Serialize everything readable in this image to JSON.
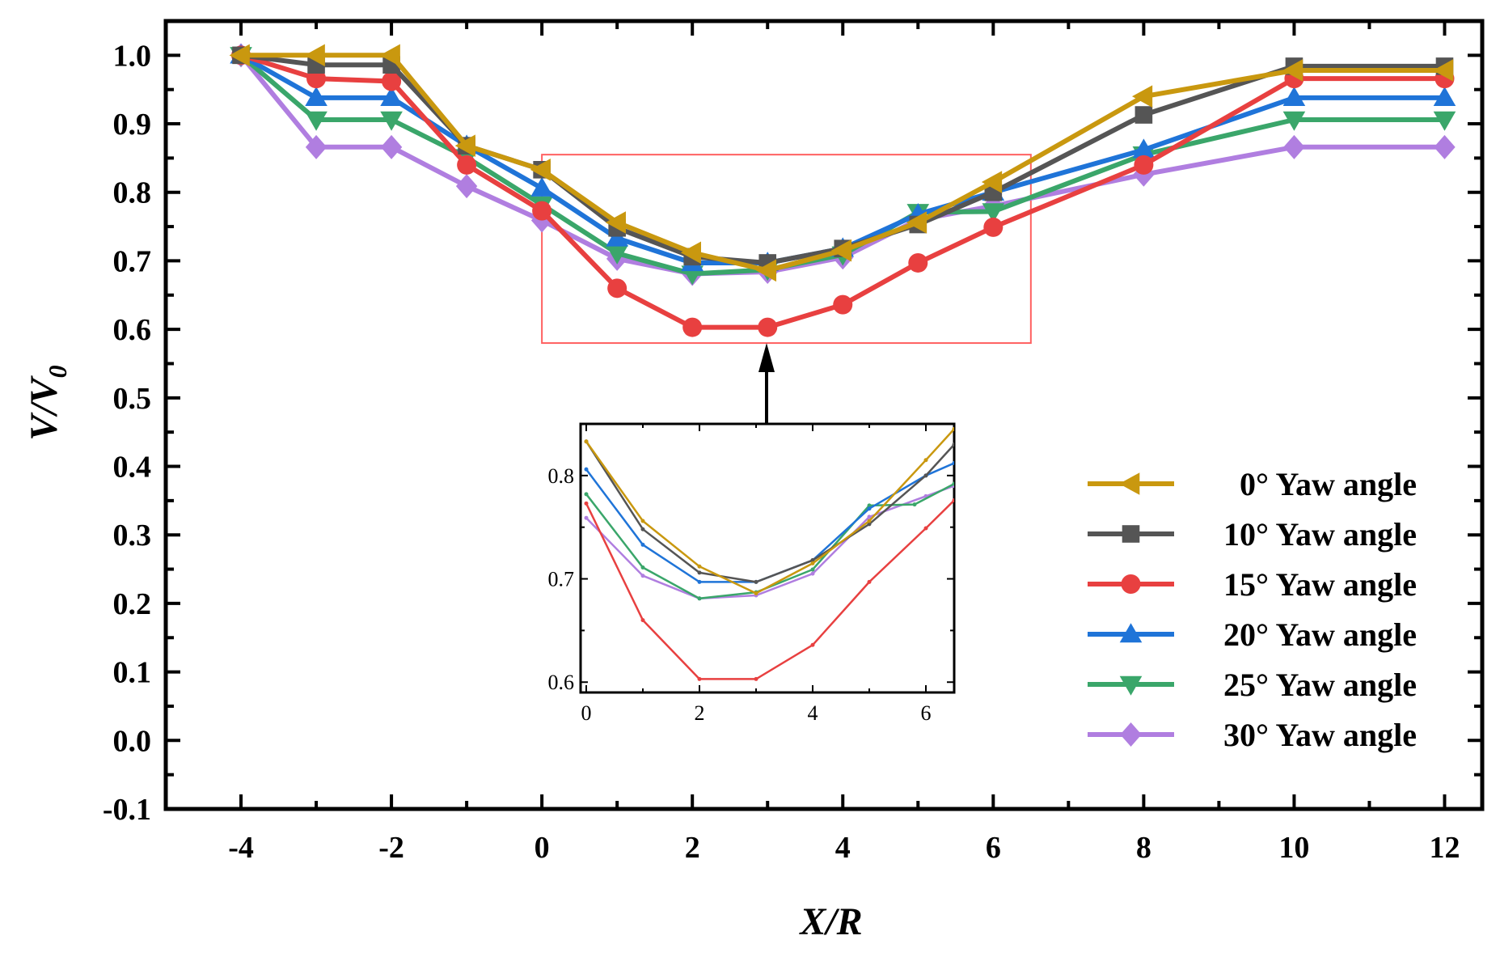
{
  "chart_data": {
    "type": "line",
    "title": "",
    "xlabel": "X/R",
    "ylabel_main": "V/V",
    "ylabel_sub": "0",
    "xlim": [
      -5,
      12.5
    ],
    "ylim": [
      -0.1,
      1.05
    ],
    "xticks": [
      -4,
      -2,
      0,
      2,
      4,
      6,
      8,
      10,
      12
    ],
    "xtick_labels": [
      "-4",
      "-2",
      "0",
      "2",
      "4",
      "6",
      "8",
      "10",
      "12"
    ],
    "yticks": [
      -0.1,
      0.0,
      0.1,
      0.2,
      0.3,
      0.4,
      0.5,
      0.6,
      0.7,
      0.8,
      0.9,
      1.0
    ],
    "ytick_labels": [
      "-0.1",
      "0.0",
      "0.1",
      "0.2",
      "0.3",
      "0.4",
      "0.5",
      "0.6",
      "0.7",
      "0.8",
      "0.9",
      "1.0"
    ],
    "legend_position": "right",
    "series": [
      {
        "name": "0° Yaw angle",
        "color": "#c9980f",
        "marker": "triangle-left",
        "x": [
          -4,
          -3,
          -2,
          -1,
          0,
          1,
          2,
          3,
          4,
          5,
          6,
          8,
          10,
          12
        ],
        "y": [
          1.0,
          1.0,
          1.0,
          0.868,
          0.833,
          0.756,
          0.712,
          0.686,
          0.715,
          0.756,
          0.815,
          0.94,
          0.978,
          0.978
        ]
      },
      {
        "name": "10° Yaw angle",
        "color": "#555555",
        "marker": "square",
        "x": [
          -4,
          -3,
          -2,
          -1,
          0,
          1,
          2,
          3,
          4,
          5,
          6,
          8,
          10,
          12
        ],
        "y": [
          1.0,
          0.986,
          0.986,
          0.868,
          0.833,
          0.748,
          0.706,
          0.697,
          0.718,
          0.753,
          0.8,
          0.913,
          0.984,
          0.984
        ]
      },
      {
        "name": "15° Yaw angle",
        "color": "#e84040",
        "marker": "circle",
        "x": [
          -4,
          -3,
          -2,
          -1,
          0,
          1,
          2,
          3,
          4,
          5,
          6,
          8,
          10,
          12
        ],
        "y": [
          1.0,
          0.966,
          0.962,
          0.84,
          0.773,
          0.66,
          0.603,
          0.603,
          0.636,
          0.697,
          0.749,
          0.84,
          0.966,
          0.966
        ]
      },
      {
        "name": "20° Yaw angle",
        "color": "#1f74d8",
        "marker": "triangle-up",
        "x": [
          -4,
          -3,
          -2,
          -1,
          0,
          1,
          2,
          3,
          4,
          5,
          6,
          8,
          10,
          12
        ],
        "y": [
          1.0,
          0.938,
          0.938,
          0.868,
          0.806,
          0.733,
          0.697,
          0.697,
          0.718,
          0.768,
          0.8,
          0.862,
          0.938,
          0.938
        ]
      },
      {
        "name": "25° Yaw angle",
        "color": "#3aa66a",
        "marker": "triangle-down",
        "x": [
          -4,
          -3,
          -2,
          -1,
          0,
          1,
          2,
          3,
          4,
          5,
          6,
          8,
          10,
          12
        ],
        "y": [
          1.0,
          0.906,
          0.906,
          0.851,
          0.782,
          0.711,
          0.681,
          0.687,
          0.709,
          0.771,
          0.772,
          0.855,
          0.906,
          0.906
        ]
      },
      {
        "name": "30° Yaw angle",
        "color": "#b07ee0",
        "marker": "diamond",
        "x": [
          -4,
          -3,
          -2,
          -1,
          0,
          1,
          2,
          3,
          4,
          5,
          6,
          8,
          10,
          12
        ],
        "y": [
          1.0,
          0.866,
          0.866,
          0.809,
          0.759,
          0.703,
          0.681,
          0.684,
          0.705,
          0.76,
          0.78,
          0.826,
          0.866,
          0.866
        ]
      }
    ],
    "zoom_box": {
      "xlim": [
        0,
        6.5
      ],
      "ylim": [
        0.58,
        0.855
      ],
      "color": "#ff6060"
    },
    "inset": {
      "xlim": [
        -0.1,
        6.5
      ],
      "ylim": [
        0.59,
        0.85
      ],
      "xticks": [
        0,
        2,
        4,
        6
      ],
      "xtick_labels": [
        "0",
        "2",
        "4",
        "6"
      ],
      "yticks": [
        0.6,
        0.7,
        0.8
      ],
      "ytick_labels": [
        "0.6",
        "0.7",
        "0.8"
      ],
      "series": [
        {
          "name": "0° Yaw angle",
          "x": [
            0,
            1,
            2,
            3,
            4,
            5,
            6,
            6.5
          ],
          "y": [
            0.833,
            0.756,
            0.712,
            0.686,
            0.715,
            0.756,
            0.815,
            0.845
          ]
        },
        {
          "name": "10° Yaw angle",
          "x": [
            0,
            1,
            2,
            3,
            4,
            5,
            6,
            6.5
          ],
          "y": [
            0.833,
            0.748,
            0.706,
            0.697,
            0.718,
            0.753,
            0.8,
            0.83
          ]
        },
        {
          "name": "15° Yaw angle",
          "x": [
            0,
            1,
            2,
            3,
            4,
            5,
            6,
            6.5
          ],
          "y": [
            0.773,
            0.66,
            0.603,
            0.603,
            0.636,
            0.697,
            0.749,
            0.776
          ]
        },
        {
          "name": "20° Yaw angle",
          "x": [
            0,
            1,
            2,
            3,
            4,
            5,
            6,
            6.5
          ],
          "y": [
            0.806,
            0.733,
            0.697,
            0.697,
            0.718,
            0.768,
            0.8,
            0.812
          ]
        },
        {
          "name": "25° Yaw angle",
          "x": [
            0,
            1,
            2,
            3,
            4,
            5,
            5.8,
            6.5
          ],
          "y": [
            0.782,
            0.711,
            0.681,
            0.687,
            0.709,
            0.771,
            0.772,
            0.792
          ]
        },
        {
          "name": "30° Yaw angle",
          "x": [
            0,
            1,
            2,
            3,
            4,
            5,
            6,
            6.5
          ],
          "y": [
            0.759,
            0.703,
            0.681,
            0.684,
            0.705,
            0.76,
            0.78,
            0.79
          ]
        }
      ]
    }
  }
}
